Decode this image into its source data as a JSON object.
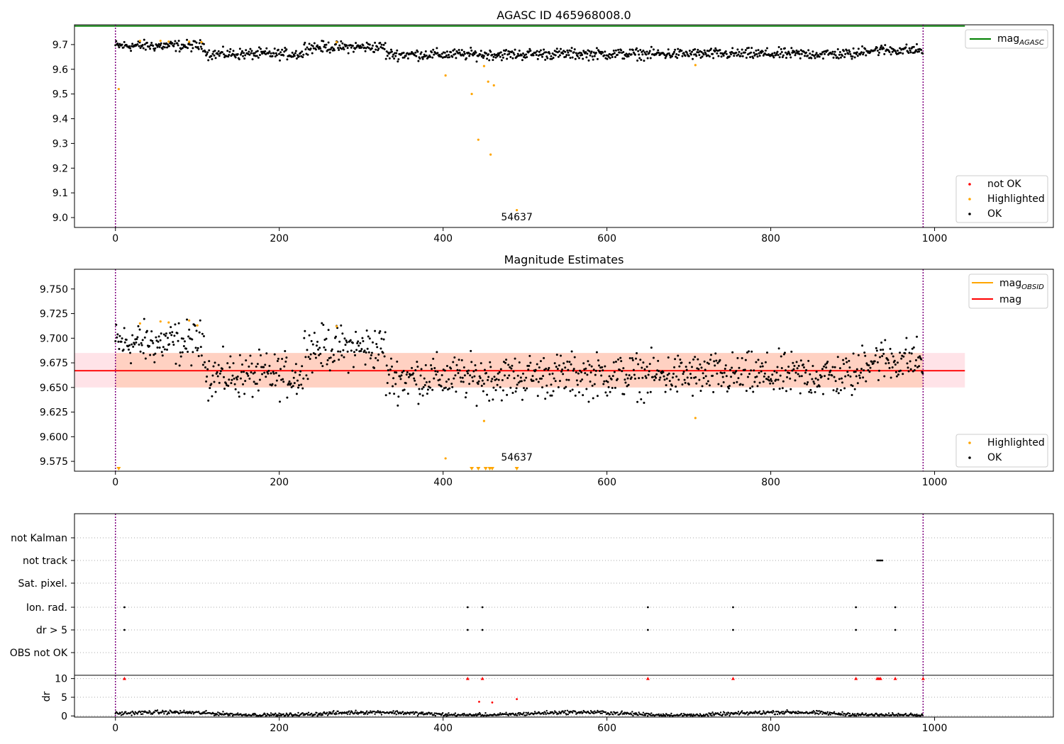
{
  "chart_data": [
    {
      "type": "scatter",
      "title": "AGASC ID 465968008.0",
      "xlim": [
        -50,
        1145
      ],
      "ylim": [
        8.96,
        9.78
      ],
      "xticks": [
        "0",
        "200",
        "400",
        "600",
        "800",
        "1000"
      ],
      "xtick_values": [
        0,
        200,
        400,
        600,
        800,
        1000
      ],
      "yticks": [
        "9.0",
        "9.1",
        "9.2",
        "9.3",
        "9.4",
        "9.5",
        "9.6",
        "9.7"
      ],
      "ytick_values": [
        9.0,
        9.1,
        9.2,
        9.3,
        9.4,
        9.5,
        9.6,
        9.7
      ],
      "vlines": [
        0,
        986
      ],
      "mag_agasc": 9.775,
      "annotation": {
        "text": "54637",
        "x": 490,
        "y": 9.0
      },
      "highlighted": {
        "x": [
          4,
          30,
          55,
          65,
          90,
          105,
          270,
          403,
          435,
          443,
          450,
          455,
          458,
          462,
          490,
          708
        ],
        "y": [
          9.52,
          9.715,
          9.715,
          9.712,
          9.712,
          9.71,
          9.71,
          9.575,
          9.5,
          9.315,
          9.613,
          9.55,
          9.255,
          9.535,
          9.03,
          9.617
        ]
      },
      "legend_upper": [
        "mag_AGASC"
      ],
      "legend_lower": [
        "not OK",
        "Highlighted",
        "OK"
      ],
      "colors": {
        "ok": "#000000",
        "highlighted": "#ffa500",
        "not_ok": "#ff0000",
        "agasc": "#008000",
        "vline": "#800080"
      }
    },
    {
      "type": "scatter",
      "title": "Magnitude Estimates",
      "xlim": [
        -50,
        1145
      ],
      "ylim": [
        9.565,
        9.77
      ],
      "xticks": [
        "0",
        "200",
        "400",
        "600",
        "800",
        "1000"
      ],
      "xtick_values": [
        0,
        200,
        400,
        600,
        800,
        1000
      ],
      "yticks": [
        "9.575",
        "9.600",
        "9.625",
        "9.650",
        "9.675",
        "9.700",
        "9.725",
        "9.750"
      ],
      "ytick_values": [
        9.575,
        9.6,
        9.625,
        9.65,
        9.675,
        9.7,
        9.725,
        9.75
      ],
      "vlines": [
        0,
        986
      ],
      "mag": 9.667,
      "mag_band": [
        9.65,
        9.685
      ],
      "mag_line_xrange": [
        -50,
        1037
      ],
      "annotation": {
        "text": "54637",
        "x": 490,
        "y": 9.573
      },
      "highlighted": {
        "x": [
          30,
          55,
          65,
          90,
          100,
          270,
          403,
          450,
          708
        ],
        "y": [
          9.715,
          9.717,
          9.716,
          9.718,
          9.713,
          9.712,
          9.578,
          9.616,
          9.619
        ]
      },
      "below_range_x": [
        4,
        435,
        443,
        452,
        457,
        460,
        490
      ],
      "legend_upper": [
        "mag_OBSID",
        "mag"
      ],
      "legend_lower": [
        "Highlighted",
        "OK"
      ],
      "colors": {
        "ok": "#000000",
        "highlighted": "#ffa500",
        "mag": "#ff0000",
        "obsid": "#ffa500",
        "band_mag": "#ffc0cb",
        "band_obsid": "#ffd0b0"
      }
    },
    {
      "type": "scatter",
      "title": "",
      "xlim": [
        -50,
        1145
      ],
      "flag_rows": [
        "not Kalman",
        "not track",
        "Sat. pixel.",
        "Ion. rad.",
        "dr > 5",
        "OBS not OK"
      ],
      "flags": {
        "not track": [
          930,
          932,
          934,
          936
        ],
        "Ion. rad.": [
          11,
          430,
          448,
          650,
          754,
          904,
          952
        ],
        "dr > 5": [
          11,
          430,
          448,
          650,
          754,
          904,
          952
        ]
      },
      "dr_ylabel": "dr",
      "dr_yticks": [
        "0",
        "5",
        "10"
      ],
      "dr_ytick_values": [
        0,
        5,
        10
      ],
      "dr_ylim": [
        -0.3,
        10.5
      ],
      "dr_clipped_x": [
        11,
        430,
        448,
        650,
        754,
        904,
        930,
        932,
        934,
        952,
        986
      ],
      "dr_outliers": {
        "x": [
          444,
          460,
          490
        ],
        "y": [
          3.8,
          3.6,
          4.5
        ]
      },
      "xticks": [
        "0",
        "200",
        "400",
        "600",
        "800",
        "1000"
      ],
      "xtick_values": [
        0,
        200,
        400,
        600,
        800,
        1000
      ],
      "vlines": [
        0,
        986
      ]
    }
  ]
}
